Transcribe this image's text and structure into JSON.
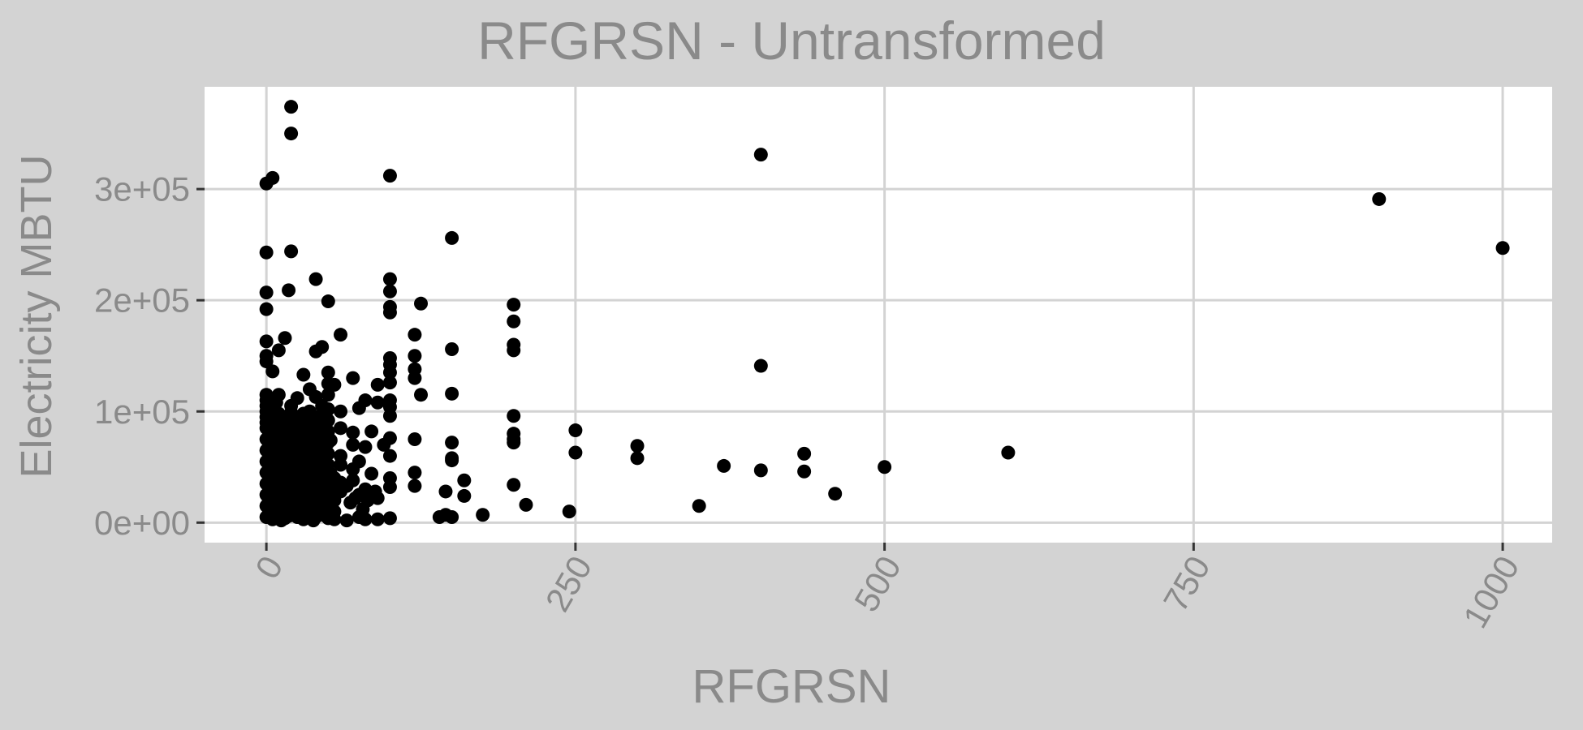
{
  "chart_data": {
    "type": "scatter",
    "title": "RFGRSN - Untransformed",
    "xlabel": "RFGRSN",
    "ylabel": "Electricity MBTU",
    "xlim": [
      -50,
      1040
    ],
    "ylim": [
      -18000,
      392000
    ],
    "x_ticks": [
      {
        "value": 0,
        "label": "0"
      },
      {
        "value": 250,
        "label": "250"
      },
      {
        "value": 500,
        "label": "500"
      },
      {
        "value": 750,
        "label": "750"
      },
      {
        "value": 1000,
        "label": "1000"
      }
    ],
    "y_ticks": [
      {
        "value": 0,
        "label": "0e+00"
      },
      {
        "value": 100000,
        "label": "1e+05"
      },
      {
        "value": 200000,
        "label": "2e+05"
      },
      {
        "value": 300000,
        "label": "3e+05"
      }
    ],
    "grid": true,
    "background": "#d3d3d3",
    "panel_background": "#ffffff",
    "grid_color": "#d3d3d3",
    "text_color": "#8a8a8a",
    "point_color": "#000000",
    "points": [
      [
        20,
        374000
      ],
      [
        20,
        350000
      ],
      [
        0,
        305000
      ],
      [
        5,
        310000
      ],
      [
        100,
        312000
      ],
      [
        400,
        331000
      ],
      [
        900,
        291000
      ],
      [
        1000,
        247000
      ],
      [
        150,
        256000
      ],
      [
        0,
        243000
      ],
      [
        20,
        244000
      ],
      [
        40,
        219000
      ],
      [
        100,
        219000
      ],
      [
        0,
        207000
      ],
      [
        18,
        209000
      ],
      [
        100,
        208000
      ],
      [
        50,
        199000
      ],
      [
        125,
        197000
      ],
      [
        200,
        196000
      ],
      [
        0,
        192000
      ],
      [
        100,
        194000
      ],
      [
        100,
        189000
      ],
      [
        200,
        181000
      ],
      [
        120,
        169000
      ],
      [
        60,
        169000
      ],
      [
        0,
        163000
      ],
      [
        15,
        166000
      ],
      [
        45,
        158000
      ],
      [
        150,
        156000
      ],
      [
        200,
        160000
      ],
      [
        200,
        155000
      ],
      [
        0,
        150000
      ],
      [
        10,
        155000
      ],
      [
        40,
        154000
      ],
      [
        0,
        145000
      ],
      [
        120,
        150000
      ],
      [
        100,
        148000
      ],
      [
        100,
        142000
      ],
      [
        400,
        141000
      ],
      [
        5,
        136000
      ],
      [
        30,
        133000
      ],
      [
        50,
        135000
      ],
      [
        70,
        130000
      ],
      [
        100,
        135000
      ],
      [
        120,
        138000
      ],
      [
        120,
        130000
      ],
      [
        100,
        126000
      ],
      [
        90,
        124000
      ],
      [
        35,
        120000
      ],
      [
        55,
        124000
      ],
      [
        0,
        115000
      ],
      [
        10,
        115000
      ],
      [
        25,
        112000
      ],
      [
        40,
        113000
      ],
      [
        125,
        115000
      ],
      [
        150,
        116000
      ],
      [
        80,
        110000
      ],
      [
        90,
        108000
      ],
      [
        100,
        110000
      ],
      [
        100,
        104000
      ],
      [
        0,
        100000
      ],
      [
        20,
        105000
      ],
      [
        60,
        100000
      ],
      [
        75,
        103000
      ],
      [
        200,
        96000
      ],
      [
        100,
        96000
      ],
      [
        0,
        90000
      ],
      [
        15,
        92000
      ],
      [
        30,
        88000
      ],
      [
        45,
        94000
      ],
      [
        250,
        83000
      ],
      [
        200,
        80000
      ],
      [
        70,
        81000
      ],
      [
        85,
        82000
      ],
      [
        60,
        85000
      ],
      [
        120,
        75000
      ],
      [
        100,
        76000
      ],
      [
        150,
        72000
      ],
      [
        200,
        75000
      ],
      [
        200,
        72000
      ],
      [
        300,
        69000
      ],
      [
        435,
        62000
      ],
      [
        600,
        63000
      ],
      [
        250,
        63000
      ],
      [
        70,
        70000
      ],
      [
        80,
        68000
      ],
      [
        95,
        70000
      ],
      [
        300,
        58000
      ],
      [
        150,
        58000
      ],
      [
        150,
        56000
      ],
      [
        100,
        60000
      ],
      [
        60,
        60000
      ],
      [
        75,
        55000
      ],
      [
        370,
        51000
      ],
      [
        500,
        50000
      ],
      [
        400,
        47000
      ],
      [
        435,
        46000
      ],
      [
        120,
        45000
      ],
      [
        70,
        48000
      ],
      [
        60,
        52000
      ],
      [
        85,
        44000
      ],
      [
        160,
        38000
      ],
      [
        100,
        40000
      ],
      [
        200,
        34000
      ],
      [
        120,
        33000
      ],
      [
        60,
        36000
      ],
      [
        70,
        38000
      ],
      [
        80,
        30000
      ],
      [
        145,
        28000
      ],
      [
        160,
        24000
      ],
      [
        460,
        26000
      ],
      [
        100,
        32000
      ],
      [
        60,
        28000
      ],
      [
        75,
        25000
      ],
      [
        90,
        22000
      ],
      [
        350,
        15000
      ],
      [
        210,
        16000
      ],
      [
        245,
        10000
      ],
      [
        175,
        7000
      ],
      [
        145,
        7000
      ],
      [
        150,
        5000
      ],
      [
        140,
        5000
      ],
      [
        75,
        5000
      ],
      [
        80,
        3000
      ],
      [
        90,
        3000
      ],
      [
        100,
        4000
      ],
      [
        65,
        2000
      ],
      [
        55,
        3000
      ],
      [
        0,
        5000
      ],
      [
        0,
        15000
      ],
      [
        0,
        25000
      ],
      [
        0,
        35000
      ],
      [
        0,
        45000
      ],
      [
        0,
        55000
      ],
      [
        0,
        65000
      ],
      [
        0,
        75000
      ],
      [
        0,
        85000
      ],
      [
        0,
        95000
      ],
      [
        0,
        105000
      ],
      [
        0,
        110000
      ],
      [
        5,
        3000
      ],
      [
        5,
        12000
      ],
      [
        5,
        22000
      ],
      [
        5,
        32000
      ],
      [
        5,
        42000
      ],
      [
        5,
        52000
      ],
      [
        5,
        62000
      ],
      [
        5,
        72000
      ],
      [
        5,
        82000
      ],
      [
        5,
        92000
      ],
      [
        5,
        102000
      ],
      [
        10,
        6000
      ],
      [
        10,
        18000
      ],
      [
        10,
        28000
      ],
      [
        10,
        38000
      ],
      [
        10,
        48000
      ],
      [
        10,
        58000
      ],
      [
        10,
        68000
      ],
      [
        10,
        78000
      ],
      [
        10,
        88000
      ],
      [
        10,
        98000
      ],
      [
        15,
        4000
      ],
      [
        15,
        14000
      ],
      [
        15,
        24000
      ],
      [
        15,
        34000
      ],
      [
        15,
        44000
      ],
      [
        15,
        54000
      ],
      [
        15,
        64000
      ],
      [
        15,
        74000
      ],
      [
        15,
        84000
      ],
      [
        20,
        9000
      ],
      [
        20,
        19000
      ],
      [
        20,
        29000
      ],
      [
        20,
        39000
      ],
      [
        20,
        49000
      ],
      [
        20,
        59000
      ],
      [
        20,
        69000
      ],
      [
        20,
        79000
      ],
      [
        20,
        89000
      ],
      [
        20,
        99000
      ],
      [
        25,
        5000
      ],
      [
        25,
        15000
      ],
      [
        25,
        25000
      ],
      [
        25,
        35000
      ],
      [
        25,
        45000
      ],
      [
        25,
        55000
      ],
      [
        25,
        65000
      ],
      [
        25,
        75000
      ],
      [
        25,
        85000
      ],
      [
        25,
        95000
      ],
      [
        30,
        3000
      ],
      [
        30,
        13000
      ],
      [
        30,
        23000
      ],
      [
        30,
        33000
      ],
      [
        30,
        43000
      ],
      [
        30,
        53000
      ],
      [
        30,
        63000
      ],
      [
        30,
        73000
      ],
      [
        30,
        83000
      ],
      [
        30,
        98000
      ],
      [
        35,
        8000
      ],
      [
        35,
        18000
      ],
      [
        35,
        28000
      ],
      [
        35,
        38000
      ],
      [
        35,
        48000
      ],
      [
        35,
        58000
      ],
      [
        35,
        68000
      ],
      [
        35,
        78000
      ],
      [
        35,
        88000
      ],
      [
        35,
        100000
      ],
      [
        40,
        5000
      ],
      [
        40,
        15000
      ],
      [
        40,
        25000
      ],
      [
        40,
        35000
      ],
      [
        40,
        45000
      ],
      [
        40,
        55000
      ],
      [
        40,
        65000
      ],
      [
        40,
        75000
      ],
      [
        40,
        85000
      ],
      [
        40,
        95000
      ],
      [
        45,
        10000
      ],
      [
        45,
        20000
      ],
      [
        45,
        30000
      ],
      [
        45,
        40000
      ],
      [
        45,
        50000
      ],
      [
        45,
        60000
      ],
      [
        45,
        70000
      ],
      [
        45,
        80000
      ],
      [
        45,
        90000
      ],
      [
        45,
        105000
      ],
      [
        50,
        4000
      ],
      [
        50,
        12000
      ],
      [
        50,
        22000
      ],
      [
        50,
        32000
      ],
      [
        50,
        42000
      ],
      [
        50,
        52000
      ],
      [
        50,
        62000
      ],
      [
        50,
        72000
      ],
      [
        50,
        82000
      ],
      [
        50,
        92000
      ],
      [
        50,
        102000
      ],
      [
        50,
        115000
      ],
      [
        50,
        125000
      ],
      [
        55,
        10000
      ],
      [
        55,
        20000
      ],
      [
        55,
        30000
      ],
      [
        55,
        40000
      ],
      [
        2,
        8000
      ],
      [
        2,
        18000
      ],
      [
        2,
        28000
      ],
      [
        2,
        38000
      ],
      [
        2,
        48000
      ],
      [
        2,
        58000
      ],
      [
        2,
        68000
      ],
      [
        2,
        78000
      ],
      [
        2,
        88000
      ],
      [
        2,
        98000
      ],
      [
        8,
        12000
      ],
      [
        8,
        22000
      ],
      [
        8,
        32000
      ],
      [
        8,
        42000
      ],
      [
        8,
        52000
      ],
      [
        8,
        62000
      ],
      [
        8,
        72000
      ],
      [
        8,
        82000
      ],
      [
        8,
        92000
      ],
      [
        8,
        108000
      ],
      [
        12,
        2000
      ],
      [
        12,
        10000
      ],
      [
        12,
        40000
      ],
      [
        12,
        70000
      ],
      [
        18,
        6000
      ],
      [
        18,
        36000
      ],
      [
        18,
        66000
      ],
      [
        18,
        96000
      ],
      [
        22,
        12000
      ],
      [
        22,
        42000
      ],
      [
        22,
        72000
      ],
      [
        28,
        8000
      ],
      [
        28,
        38000
      ],
      [
        28,
        68000
      ],
      [
        32,
        16000
      ],
      [
        32,
        46000
      ],
      [
        32,
        76000
      ],
      [
        38,
        2000
      ],
      [
        38,
        32000
      ],
      [
        38,
        62000
      ],
      [
        42,
        22000
      ],
      [
        42,
        52000
      ],
      [
        42,
        82000
      ],
      [
        48,
        6000
      ],
      [
        48,
        36000
      ],
      [
        48,
        66000
      ],
      [
        48,
        96000
      ],
      [
        52,
        14000
      ],
      [
        52,
        44000
      ],
      [
        52,
        74000
      ],
      [
        65,
        33000
      ],
      [
        68,
        18000
      ],
      [
        72,
        22000
      ],
      [
        78,
        12000
      ],
      [
        82,
        20000
      ],
      [
        88,
        28000
      ]
    ]
  }
}
